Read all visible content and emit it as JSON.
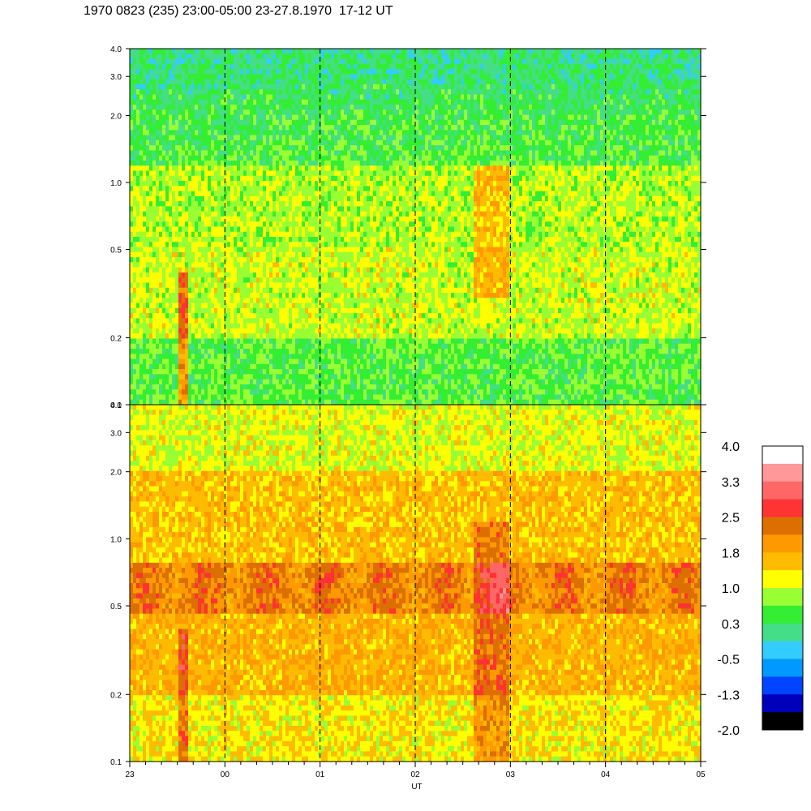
{
  "title": "1970 0823 (235) 23:00-05:00 23-27.8.1970  17-12 UT",
  "chart_data": [
    {
      "type": "heatmap",
      "panel": "upper",
      "title": "",
      "xlabel": "",
      "ylabel": "",
      "y_scale": "log",
      "ylim": [
        0.1,
        4.0
      ],
      "y_ticks": [
        {
          "value": 0.1,
          "label": "0.1"
        },
        {
          "value": 0.2,
          "label": "0.2"
        },
        {
          "value": 0.5,
          "label": "0.5"
        },
        {
          "value": 1.0,
          "label": "1.0"
        },
        {
          "value": 2.0,
          "label": "2.0"
        },
        {
          "value": 3.0,
          "label": "3.0"
        },
        {
          "value": 4.0,
          "label": "4.0"
        }
      ],
      "xlim": [
        "23:00",
        "05:00"
      ],
      "hour_markers": [
        "00",
        "01",
        "02",
        "03",
        "04"
      ],
      "dominant_levels": {
        "low_freq": 0.3,
        "mid_freq": 1.0,
        "high_freq": 0.3
      }
    },
    {
      "type": "heatmap",
      "panel": "lower",
      "title": "",
      "xlabel": "UT",
      "ylabel": "",
      "y_scale": "log",
      "ylim": [
        0.1,
        4.0
      ],
      "y_ticks": [
        {
          "value": 0.1,
          "label": "0.1"
        },
        {
          "value": 0.2,
          "label": "0.2"
        },
        {
          "value": 0.5,
          "label": "0.5"
        },
        {
          "value": 1.0,
          "label": "1.0"
        },
        {
          "value": 2.0,
          "label": "2.0"
        },
        {
          "value": 3.0,
          "label": "3.0"
        },
        {
          "value": 4.0,
          "label": "4.0"
        }
      ],
      "x_ticks": [
        "23",
        "00",
        "01",
        "02",
        "03",
        "04",
        "05"
      ],
      "xlim": [
        "23:00",
        "05:00"
      ],
      "hour_markers": [
        "00",
        "01",
        "02",
        "03",
        "04"
      ],
      "dominant_levels": {
        "low_freq": 1.6,
        "band_0.5_0.7": 2.2,
        "high_freq": 1.2
      },
      "enhanced_interval": [
        "02:35",
        "02:55"
      ]
    }
  ],
  "colorbar": {
    "min": -2.0,
    "max": 4.0,
    "labels": [
      "4.0",
      "3.3",
      "2.5",
      "1.8",
      "1.0",
      "0.3",
      "-0.5",
      "-1.3",
      "-2.0"
    ],
    "colors_top_to_bottom": [
      "#ffffff",
      "#ff9999",
      "#ff6666",
      "#ff3333",
      "#dd6f00",
      "#ff9900",
      "#ffbb00",
      "#ffff00",
      "#99ff33",
      "#33ee33",
      "#44dd88",
      "#33ccff",
      "#0099ff",
      "#0044ff",
      "#0000bb",
      "#000000"
    ]
  }
}
